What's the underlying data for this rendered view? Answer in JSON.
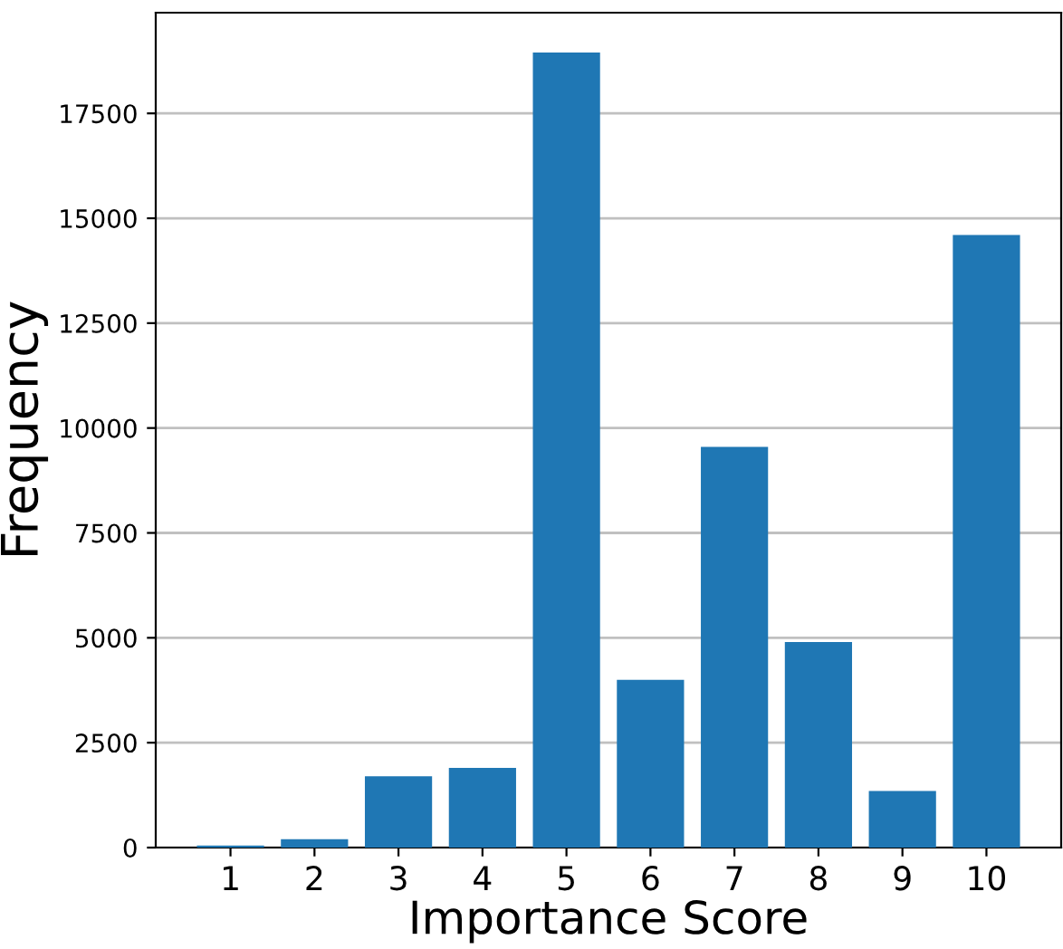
{
  "chart_data": {
    "type": "bar",
    "xlabel": "Importance Score",
    "ylabel": "Frequency",
    "categories": [
      "1",
      "2",
      "3",
      "4",
      "5",
      "6",
      "7",
      "8",
      "9",
      "10"
    ],
    "values": [
      50,
      200,
      1700,
      1900,
      18950,
      4000,
      9550,
      4900,
      1350,
      14600
    ],
    "color": "#1f77b4",
    "ylim": [
      0,
      19900
    ],
    "yticks": [
      0,
      2500,
      5000,
      7500,
      10000,
      12500,
      15000,
      17500
    ],
    "grid": "y",
    "legend": false
  }
}
